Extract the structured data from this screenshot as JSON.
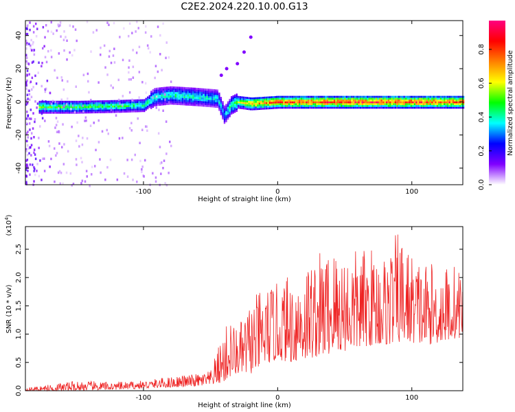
{
  "title": "C2E2.2024.220.10.00.G13",
  "chart_data": [
    {
      "type": "heatmap",
      "xlabel": "Height of straight line (km)",
      "ylabel": "Frequency (Hz)",
      "xlim": [
        -188,
        138
      ],
      "ylim": [
        -50,
        49
      ],
      "xticks": [
        -100,
        0,
        100
      ],
      "yticks": [
        -40,
        -20,
        0,
        20,
        40
      ],
      "colorbar": {
        "label": "Normalized spectral amplitude",
        "range": [
          0.0,
          0.97
        ],
        "ticks": [
          "0.0",
          "0.2",
          "0.4",
          "0.6",
          "0.8"
        ],
        "colors": [
          "#ffffff",
          "#8000ff",
          "#0000ff",
          "#00ffff",
          "#00ff00",
          "#ffff00",
          "#ff8000",
          "#ff0000",
          "#ff0080"
        ]
      },
      "ridge": {
        "x": [
          -175,
          -150,
          -120,
          -100,
          -92,
          -80,
          -60,
          -45,
          -40,
          -35,
          -30,
          -20,
          0,
          50,
          100,
          138
        ],
        "y": [
          -3,
          -3,
          -2.5,
          -2,
          3,
          4,
          3,
          2,
          -8,
          -2,
          0,
          -1,
          0,
          0,
          0,
          0
        ]
      },
      "ridge_intensity": {
        "x": [
          -175,
          -100,
          -90,
          -60,
          -40,
          -20,
          0,
          50,
          100,
          138
        ],
        "value": [
          0.55,
          0.5,
          0.45,
          0.45,
          0.4,
          0.75,
          0.85,
          0.9,
          0.9,
          0.85
        ]
      },
      "secondary_points": [
        {
          "x": -20,
          "y": 39
        },
        {
          "x": -25,
          "y": 30
        },
        {
          "x": -30,
          "y": 23
        },
        {
          "x": -38,
          "y": 20
        },
        {
          "x": -42,
          "y": 16
        }
      ]
    },
    {
      "type": "line",
      "xlabel": "Height of straight line (km)",
      "ylabel": "SNR (10 * v/v)",
      "scale_label": "(x10",
      "scale_exponent": "4",
      "scale_suffix": ")",
      "xlim": [
        -188,
        138
      ],
      "ylim": [
        0,
        2.9
      ],
      "xticks": [
        -100,
        0,
        100
      ],
      "yticks": [
        "0.0",
        "0.5",
        "1.0",
        "1.5",
        "2.0",
        "2.5"
      ],
      "color": "#ee2222",
      "envelope": {
        "x": [
          -188,
          -150,
          -120,
          -100,
          -80,
          -60,
          -50,
          -40,
          -35,
          -30,
          -20,
          -10,
          0,
          10,
          20,
          30,
          40,
          50,
          60,
          70,
          80,
          90,
          100,
          110,
          120,
          130,
          138
        ],
        "low": [
          0.0,
          0.0,
          0.02,
          0.04,
          0.06,
          0.08,
          0.1,
          0.15,
          0.25,
          0.3,
          0.3,
          0.45,
          0.55,
          0.5,
          0.55,
          0.6,
          0.65,
          0.7,
          0.75,
          0.8,
          0.8,
          0.85,
          0.85,
          0.8,
          0.85,
          0.9,
          0.95
        ],
        "high": [
          0.05,
          0.18,
          0.15,
          0.18,
          0.25,
          0.3,
          0.35,
          1.1,
          1.3,
          1.1,
          1.6,
          1.85,
          1.9,
          2.1,
          2.3,
          2.45,
          2.6,
          2.55,
          2.5,
          2.55,
          2.45,
          2.85,
          2.45,
          2.3,
          2.2,
          2.3,
          2.1
        ]
      }
    }
  ]
}
